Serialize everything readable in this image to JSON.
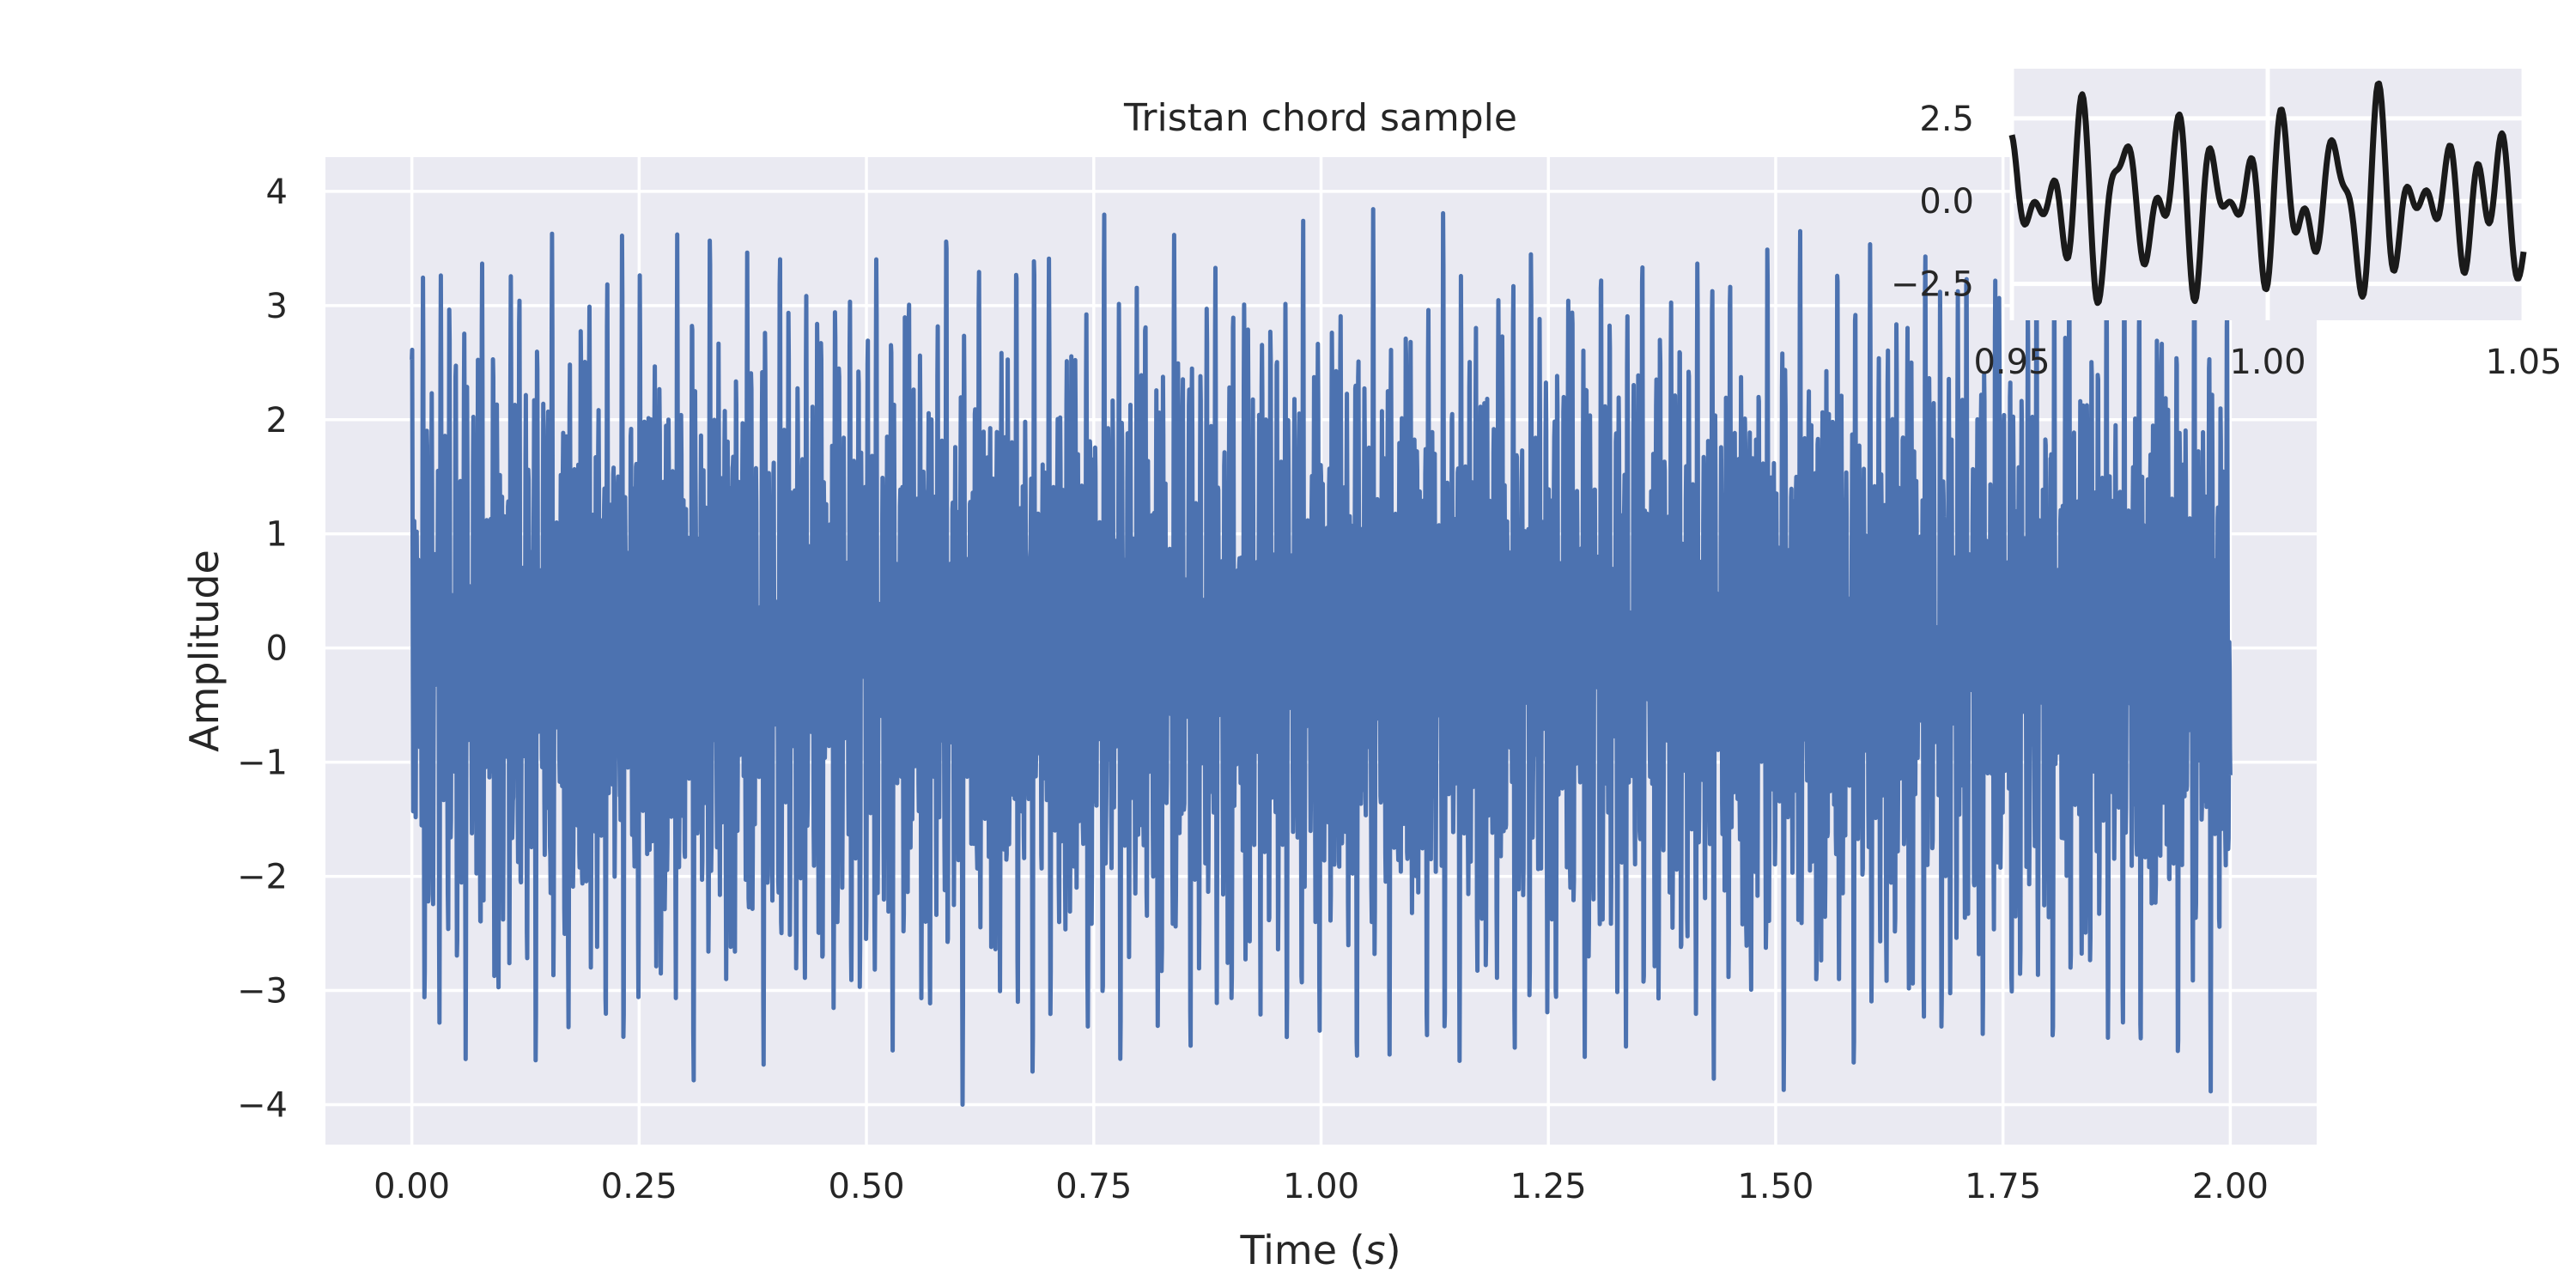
{
  "chart_data": [
    {
      "type": "line",
      "title": "Tristan chord sample",
      "xlabel_main": "Time (",
      "xlabel_var": "s",
      "xlabel_close": ")",
      "ylabel": "Amplitude",
      "xlim": [
        -0.095,
        2.095
      ],
      "ylim": [
        -4.35,
        4.3
      ],
      "xticks": [
        0.0,
        0.25,
        0.5,
        0.75,
        1.0,
        1.25,
        1.5,
        1.75,
        2.0
      ],
      "xtick_labels": [
        "0.00",
        "0.25",
        "0.50",
        "0.75",
        "1.00",
        "1.25",
        "1.50",
        "1.75",
        "2.00"
      ],
      "yticks": [
        -4,
        -3,
        -2,
        -1,
        0,
        1,
        2,
        3,
        4
      ],
      "ytick_labels": [
        "−4",
        "−3",
        "−2",
        "−1",
        "0",
        "1",
        "2",
        "3",
        "4"
      ],
      "grid": true,
      "background": "#eaeaf2",
      "series": [
        {
          "color": "#4c72b0",
          "signal": "sum of four sinusoids, 0 to 2 s, peak amplitude about 4",
          "x_range": [
            0.0,
            2.0
          ],
          "y_range": [
            -4.0,
            3.9
          ]
        }
      ]
    },
    {
      "type": "line",
      "inset": true,
      "xlim": [
        0.95,
        1.05
      ],
      "ylim": [
        -3.6,
        4.0
      ],
      "xticks": [
        0.95,
        1.0,
        1.05
      ],
      "xtick_labels": [
        "0.95",
        "1.00",
        "1.05"
      ],
      "yticks": [
        -2.5,
        0.0,
        2.5
      ],
      "ytick_labels": [
        "−2.5",
        "0.0",
        "2.5"
      ],
      "grid": true,
      "background": "#eaeaf2",
      "series": [
        {
          "color": "#1a1a1a",
          "x_range": [
            0.95,
            1.05
          ]
        }
      ]
    }
  ]
}
